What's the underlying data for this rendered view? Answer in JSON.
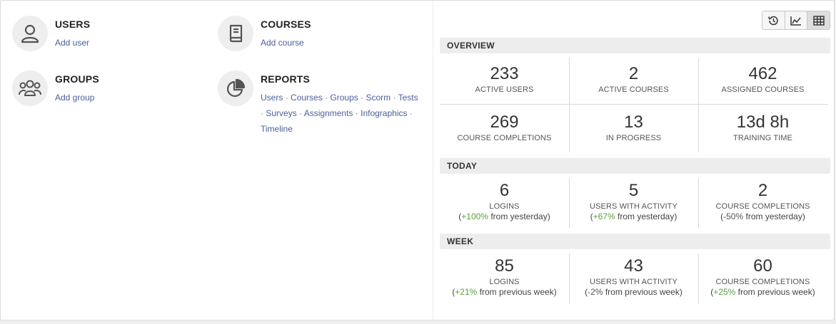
{
  "tiles": {
    "users": {
      "title": "USERS",
      "link": "Add user",
      "icon": "user-icon"
    },
    "courses": {
      "title": "COURSES",
      "link": "Add course",
      "icon": "book-icon"
    },
    "groups": {
      "title": "GROUPS",
      "link": "Add group",
      "icon": "group-icon"
    },
    "reports": {
      "title": "REPORTS",
      "icon": "pie-chart-icon",
      "links": [
        "Users",
        "Courses",
        "Groups",
        "Scorm",
        "Tests",
        "Surveys",
        "Assignments",
        "Infographics",
        "Timeline"
      ],
      "separator": "·"
    }
  },
  "toolbar": {
    "buttons": [
      "history-icon",
      "line-chart-icon",
      "table-icon"
    ],
    "active": "table-icon"
  },
  "overview": {
    "header": "OVERVIEW",
    "cells": [
      {
        "value": "233",
        "label": "ACTIVE USERS"
      },
      {
        "value": "2",
        "label": "ACTIVE COURSES"
      },
      {
        "value": "462",
        "label": "ASSIGNED COURSES"
      },
      {
        "value": "269",
        "label": "COURSE COMPLETIONS"
      },
      {
        "value": "13",
        "label": "IN PROGRESS"
      },
      {
        "value": "13d 8h",
        "label": "TRAINING TIME"
      }
    ]
  },
  "today": {
    "header": "TODAY",
    "cells": [
      {
        "value": "6",
        "label": "LOGINS",
        "change": "+100%",
        "change_suffix": "from yesterday",
        "trend": "pos"
      },
      {
        "value": "5",
        "label": "USERS WITH ACTIVITY",
        "change": "+67%",
        "change_suffix": "from yesterday",
        "trend": "pos"
      },
      {
        "value": "2",
        "label": "COURSE COMPLETIONS",
        "change": "-50%",
        "change_suffix": "from yesterday",
        "trend": "neg"
      }
    ]
  },
  "week": {
    "header": "WEEK",
    "cells": [
      {
        "value": "85",
        "label": "LOGINS",
        "change": "+21%",
        "change_suffix": "from previous week",
        "trend": "pos"
      },
      {
        "value": "43",
        "label": "USERS WITH ACTIVITY",
        "change": "-2%",
        "change_suffix": "from previous week",
        "trend": "neg"
      },
      {
        "value": "60",
        "label": "COURSE COMPLETIONS",
        "change": "+25%",
        "change_suffix": "from previous week",
        "trend": "pos"
      }
    ]
  },
  "colors": {
    "link": "#4b5f9e",
    "positive": "#5a9e3c",
    "header_bg": "#ededed"
  }
}
